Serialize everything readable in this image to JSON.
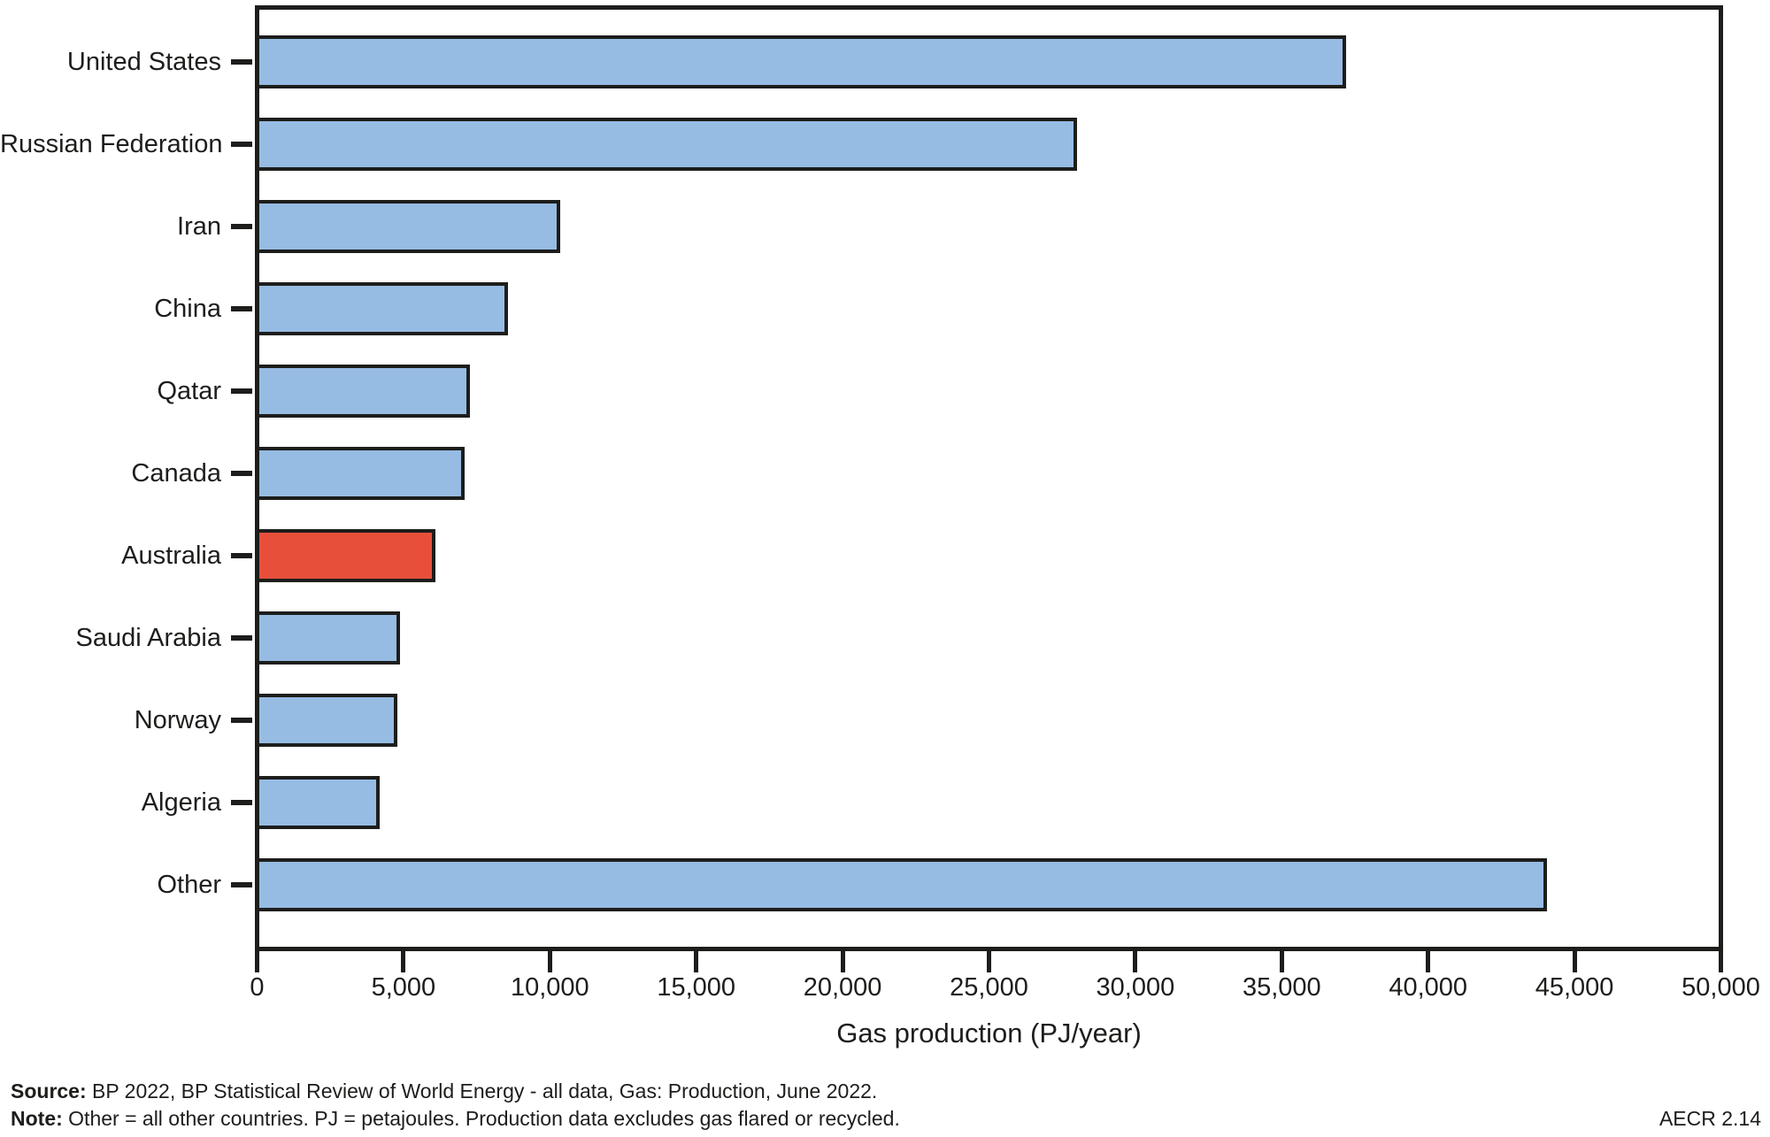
{
  "figure": {
    "code": "AECR 2.14",
    "source_prefix": "Source:",
    "source_text": " BP 2022, BP Statistical Review of World Energy - all data, Gas: Production, June 2022.",
    "note_prefix": "Note:",
    "note_text": " Other = all other countries. PJ = petajoules. Production data excludes gas flared or recycled."
  },
  "chart_data": {
    "type": "bar",
    "orientation": "horizontal",
    "title": "",
    "xlabel": "Gas production (PJ/year)",
    "ylabel": "",
    "xlim": [
      0,
      50000
    ],
    "xticks": [
      0,
      5000,
      10000,
      15000,
      20000,
      25000,
      30000,
      35000,
      40000,
      45000,
      50000
    ],
    "xtick_labels": [
      "0",
      "5,000",
      "10,000",
      "15,000",
      "20,000",
      "25,000",
      "30,000",
      "35,000",
      "40,000",
      "45,000",
      "50,000"
    ],
    "categories": [
      "United States",
      "Russian Federation",
      "Iran",
      "China",
      "Qatar",
      "Canada",
      "Australia",
      "Saudi Arabia",
      "Norway",
      "Algeria",
      "Other"
    ],
    "values": [
      37100,
      27900,
      10200,
      8400,
      7100,
      6900,
      5900,
      4700,
      4600,
      4000,
      44000
    ],
    "highlighted_category": "Australia",
    "grid": false,
    "legend": false,
    "colors": {
      "bar": "#96bce4",
      "highlight": "#e84f3b",
      "frame": "#1d1d1b"
    }
  }
}
